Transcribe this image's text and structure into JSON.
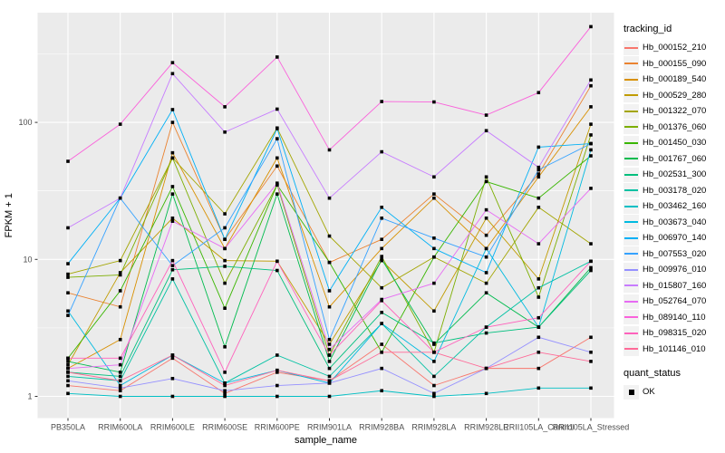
{
  "chart_data": {
    "type": "line",
    "title": "",
    "xlabel": "sample_name",
    "ylabel": "FPKM + 1",
    "y_scale": "log10",
    "y_ticks": [
      1,
      10,
      100
    ],
    "y_minor": [
      3.162,
      31.62,
      316.2
    ],
    "ylim_log": [
      -0.16,
      2.8
    ],
    "grid": "on",
    "panel_bg": "#ebebeb",
    "grid_color": "#ffffff",
    "tick_color": "#333333",
    "tick_label_color": "#4d4d4d",
    "point_shape": "filled-square",
    "point_color": "#000000",
    "legend_position": "right",
    "categories": [
      "PB350LA",
      "RRIM600LA",
      "RRIM600LE",
      "RRIM600SE",
      "RRIM600PE",
      "RRIM901LA",
      "RRIM928BA",
      "RRIM928LA",
      "RRIM928LE",
      "RRII105LA_Control",
      "RRII105LA_Stressed"
    ],
    "series": [
      {
        "name": "Hb_000152_210",
        "color": "#F8766D",
        "values": [
          1.2,
          1.1,
          1.9,
          1.05,
          1.5,
          1.3,
          2.4,
          1.2,
          1.6,
          1.6,
          2.7
        ]
      },
      {
        "name": "Hb_000155_090",
        "color": "#EA8331",
        "values": [
          5.7,
          4.5,
          100,
          14,
          48,
          9.5,
          14,
          30,
          15,
          42,
          185
        ]
      },
      {
        "name": "Hb_000189_540",
        "color": "#D89000",
        "values": [
          1.6,
          2.6,
          60,
          12,
          55,
          4.5,
          12,
          28,
          12,
          40,
          130
        ]
      },
      {
        "name": "Hb_000529_280",
        "color": "#C09B00",
        "values": [
          1.7,
          8,
          20,
          9.8,
          9.7,
          2.4,
          9.8,
          4.2,
          20,
          7.2,
          97
        ]
      },
      {
        "name": "Hb_001322_070",
        "color": "#A3A500",
        "values": [
          7.8,
          9.8,
          55,
          21.5,
          91,
          14.8,
          6.2,
          10.4,
          6.7,
          24,
          13
        ]
      },
      {
        "name": "Hb_001376_060",
        "color": "#7CAE00",
        "values": [
          7.4,
          7.7,
          55,
          6.7,
          35,
          2.0,
          10.5,
          2.1,
          40,
          5.3,
          81
        ]
      },
      {
        "name": "Hb_001450_030",
        "color": "#39B600",
        "values": [
          1.9,
          5.9,
          34,
          4.4,
          35,
          9.5,
          2.1,
          10.4,
          37,
          28,
          57
        ]
      },
      {
        "name": "Hb_001767_060",
        "color": "#00BB4E",
        "values": [
          1.8,
          1.5,
          30,
          2.3,
          30,
          1.8,
          10,
          2.4,
          5.7,
          3.2,
          8.7
        ]
      },
      {
        "name": "Hb_002531_300",
        "color": "#00BF7D",
        "values": [
          1.5,
          1.4,
          8.4,
          8.9,
          8.3,
          1.6,
          4.1,
          2.45,
          2.9,
          3.2,
          8.3
        ]
      },
      {
        "name": "Hb_003178_020",
        "color": "#00C1A3",
        "values": [
          1.4,
          1.3,
          7.2,
          1.25,
          2.0,
          1.4,
          3.4,
          1.4,
          3.2,
          6.2,
          9.7
        ]
      },
      {
        "name": "Hb_003462_160",
        "color": "#00BFC4",
        "values": [
          1.05,
          1.0,
          1.0,
          1.0,
          1.0,
          1.0,
          1.1,
          1.0,
          1.05,
          1.15,
          1.15
        ]
      },
      {
        "name": "Hb_003673_040",
        "color": "#00BAE0",
        "values": [
          4.2,
          1.2,
          2.0,
          1.25,
          1.55,
          1.25,
          3.4,
          1.8,
          12,
          3.2,
          63
        ]
      },
      {
        "name": "Hb_006970_140",
        "color": "#00B0F6",
        "values": [
          9.3,
          28,
          124,
          14,
          90,
          5.9,
          24,
          12,
          8.0,
          66,
          70
        ]
      },
      {
        "name": "Hb_007553_020",
        "color": "#35A2FF",
        "values": [
          3.9,
          28,
          9,
          17,
          76,
          2.6,
          20,
          14.3,
          10.4,
          45,
          70
        ]
      },
      {
        "name": "Hb_009976_010",
        "color": "#9590FF",
        "values": [
          1.3,
          1.15,
          1.35,
          1.1,
          1.2,
          1.25,
          1.6,
          1.05,
          1.6,
          2.7,
          2.1
        ]
      },
      {
        "name": "Hb_015807_160",
        "color": "#C77CFF",
        "values": [
          17,
          28,
          227,
          85,
          125,
          28,
          61,
          40,
          87,
          47,
          204
        ]
      },
      {
        "name": "Hb_052764_070",
        "color": "#E76BF3",
        "values": [
          1.6,
          1.7,
          19,
          12,
          36,
          2.2,
          5.1,
          6.7,
          23,
          13,
          33
        ]
      },
      {
        "name": "Hb_089140_110",
        "color": "#FA62DB",
        "values": [
          52,
          97,
          273,
          130,
          300,
          63,
          142,
          141,
          113,
          165,
          500
        ]
      },
      {
        "name": "Hb_098315_020",
        "color": "#FF62BC",
        "values": [
          1.9,
          1.9,
          9.8,
          1.5,
          9.7,
          2.0,
          5.0,
          2.1,
          3.2,
          3.75,
          9.7
        ]
      },
      {
        "name": "Hb_101146_010",
        "color": "#FF6A98",
        "values": [
          1.5,
          1.3,
          2.0,
          1.2,
          1.55,
          1.3,
          2.1,
          2.1,
          1.6,
          2.1,
          1.8
        ]
      }
    ],
    "legend": {
      "tracking_title": "tracking_id",
      "quant_title": "quant_status",
      "quant_label": "OK"
    }
  }
}
